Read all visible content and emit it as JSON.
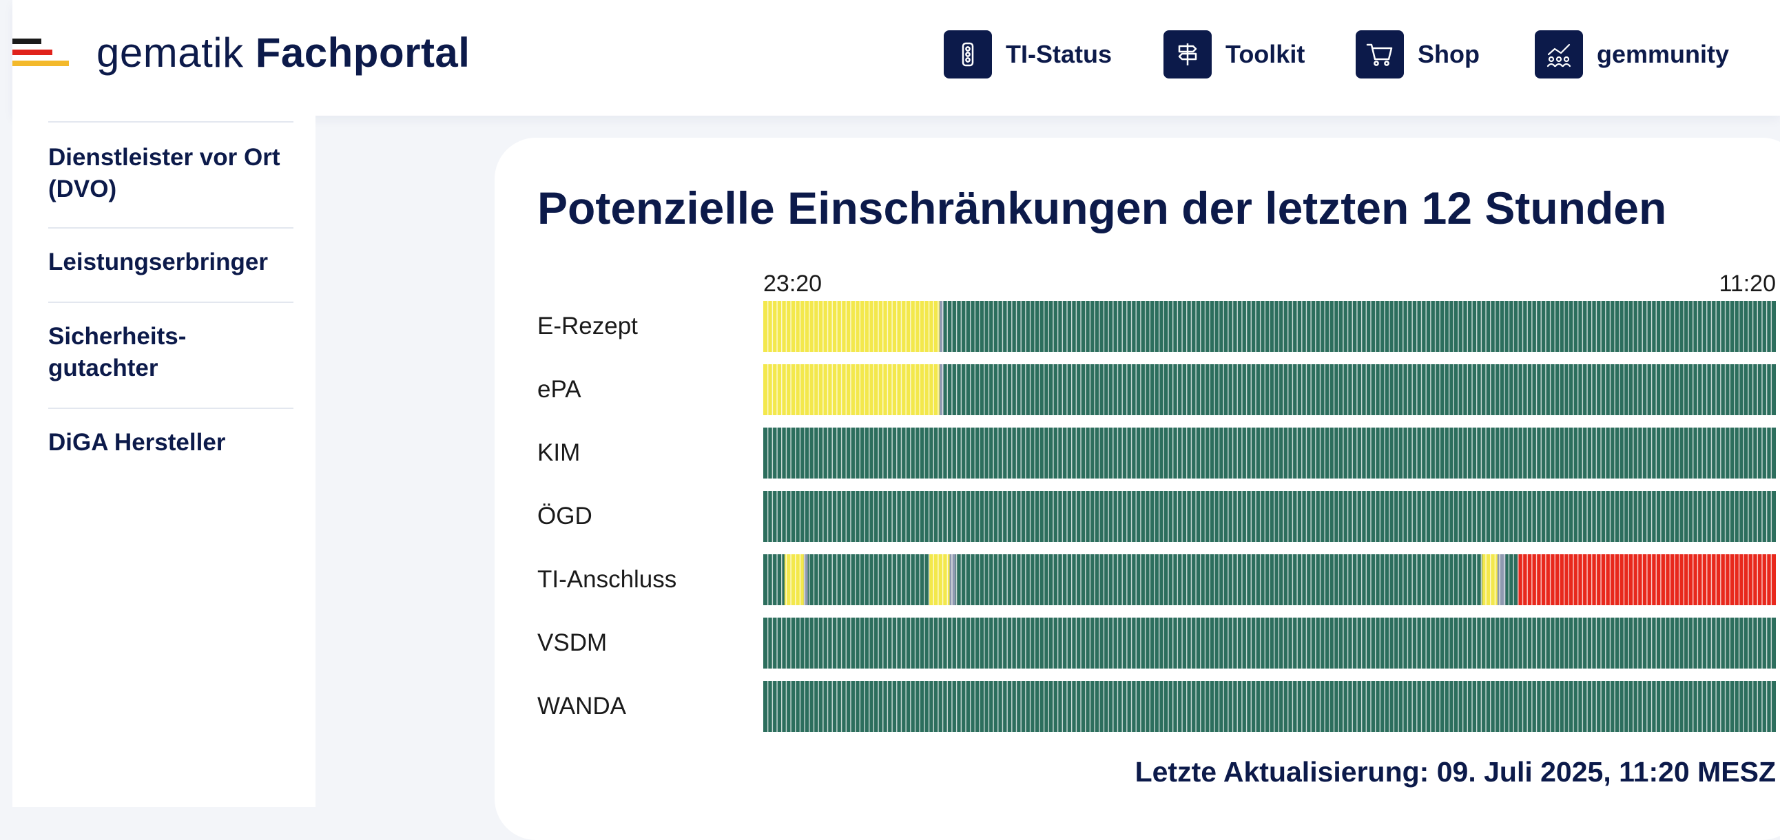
{
  "header": {
    "brand_light": "gematik",
    "brand_bold": "Fachportal",
    "nav": [
      {
        "label": "TI-Status",
        "icon": "traffic-light-icon"
      },
      {
        "label": "Toolkit",
        "icon": "signpost-icon"
      },
      {
        "label": "Shop",
        "icon": "shopping-cart-icon"
      },
      {
        "label": "gemmunity",
        "icon": "community-icon"
      }
    ]
  },
  "sidebar": {
    "items": [
      {
        "label": "Dienstleister vor Ort (DVO)"
      },
      {
        "label": "Leistungserbringer"
      },
      {
        "label": "Sicherheits-gutachter"
      },
      {
        "label": "DiGA Hersteller"
      }
    ]
  },
  "status": {
    "title": "Potenzielle Einschränkungen der letzten 12 Stunden",
    "time_start": "23:20",
    "time_end": "11:20",
    "updated": "Letzte Aktualisierung: 09. Juli 2025, 11:20 MESZ",
    "colors": {
      "ok": "#2c6e5d",
      "warn": "#f3e84c",
      "error": "#e8281c",
      "unknown": "#8f99b0"
    },
    "rows": [
      {
        "name": "E-Rezept",
        "segments": [
          [
            "warn",
            0.174
          ],
          [
            "unknown",
            0.004
          ],
          [
            "ok",
            0.822
          ]
        ]
      },
      {
        "name": "ePA",
        "segments": [
          [
            "warn",
            0.174
          ],
          [
            "unknown",
            0.004
          ],
          [
            "ok",
            0.822
          ]
        ]
      },
      {
        "name": "KIM",
        "segments": [
          [
            "ok",
            1.0
          ]
        ]
      },
      {
        "name": "ÖGD",
        "segments": [
          [
            "ok",
            1.0
          ]
        ]
      },
      {
        "name": "TI-Anschluss",
        "segments": [
          [
            "ok",
            0.021
          ],
          [
            "warn",
            0.019
          ],
          [
            "unknown",
            0.004
          ],
          [
            "ok",
            0.12
          ],
          [
            "warn",
            0.02
          ],
          [
            "unknown",
            0.006
          ],
          [
            "ok",
            0.52
          ],
          [
            "warn",
            0.015
          ],
          [
            "unknown",
            0.008
          ],
          [
            "ok",
            0.012
          ],
          [
            "error",
            0.255
          ]
        ]
      },
      {
        "name": "VSDM",
        "segments": [
          [
            "ok",
            1.0
          ]
        ]
      },
      {
        "name": "WANDA",
        "segments": [
          [
            "ok",
            1.0
          ]
        ]
      }
    ]
  }
}
